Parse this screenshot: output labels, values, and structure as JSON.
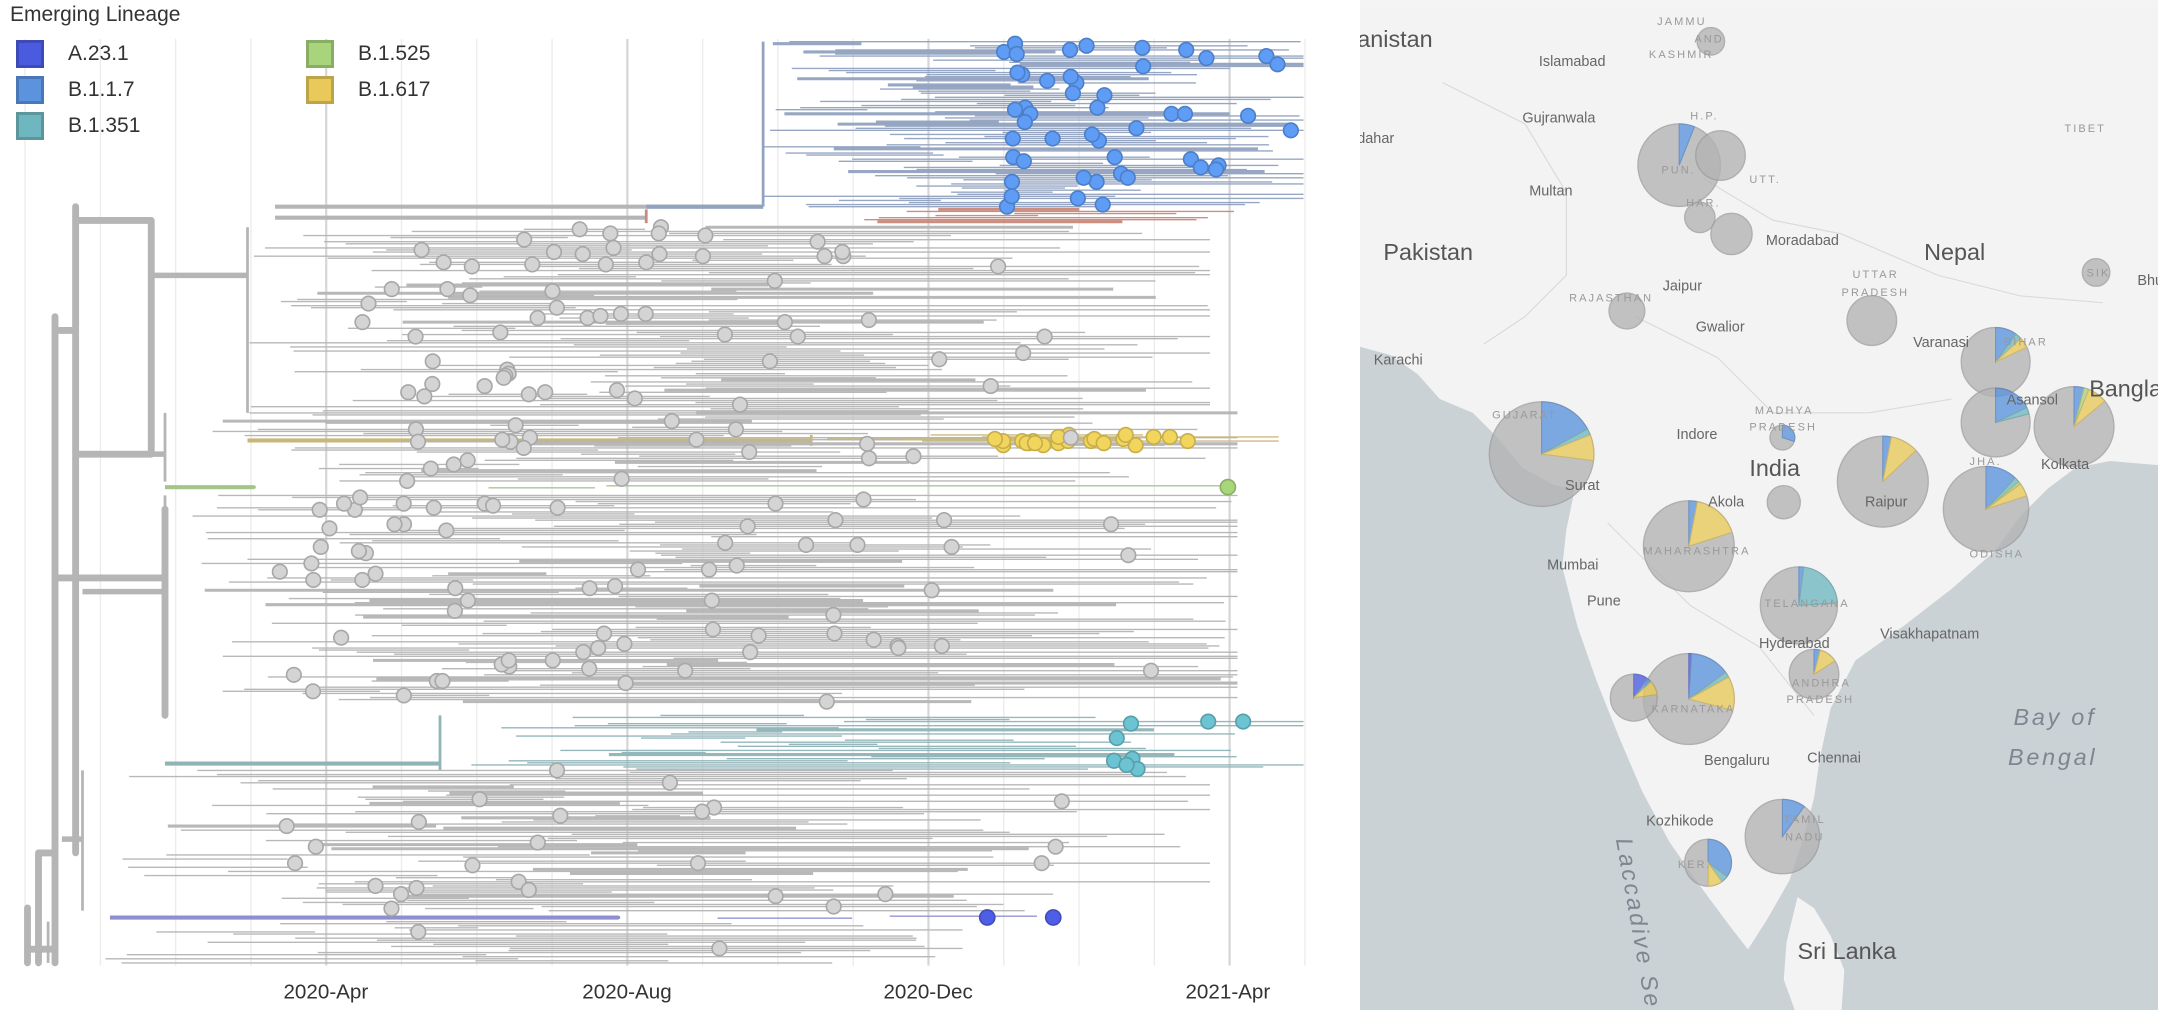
{
  "chart_data": {
    "type": "phylogenetic-tree-and-map",
    "legend": {
      "title": "Emerging Lineage",
      "entries": [
        {
          "name": "A.23.1",
          "color": "#4b5be0"
        },
        {
          "name": "B.1.1.7",
          "color": "#5b93de"
        },
        {
          "name": "B.1.351",
          "color": "#6fb7c0"
        },
        {
          "name": "B.1.525",
          "color": "#a8d47c"
        },
        {
          "name": "B.1.617",
          "color": "#e8c95a"
        }
      ],
      "other_color": "#b3b3b3"
    },
    "tree": {
      "x_axis": {
        "ticks": [
          "2020-Apr",
          "2020-Aug",
          "2020-Dec",
          "2021-Apr"
        ],
        "range_months_since_2020_01": [
          -1,
          16
        ],
        "grid": true
      },
      "clades": [
        {
          "lineage": "B.1.1.7",
          "first_month": 9.2,
          "last_month": 15.5,
          "tip_count": 48
        },
        {
          "lineage": "B.1.617",
          "first_month": 11.5,
          "last_month": 15.3,
          "tip_count": 24
        },
        {
          "lineage": "B.1.525",
          "first_month": 2.1,
          "last_month": 15.0,
          "tip_count": 1
        },
        {
          "lineage": "B.1.351",
          "first_month": 4.6,
          "last_month": 15.3,
          "tip_count": 8
        },
        {
          "lineage": "A.23.1",
          "first_month": 6.9,
          "last_month": 14.4,
          "tip_count": 2
        }
      ]
    },
    "map": {
      "labels": {
        "afghanistan": "anistan",
        "islamabad": "Islamabad",
        "jammu": "JAMMU",
        "and": "AND",
        "kashmir": "KASHMIR",
        "gujranwala": "Gujranwala",
        "hp": "H.P.",
        "tibet": "TIBET",
        "kandahar": "dahar",
        "pun": "PUN.",
        "multan": "Multan",
        "utt": "UTT.",
        "har": "HAR.",
        "pakistan": "Pakistan",
        "moradabad": "Moradabad",
        "nepal": "Nepal",
        "bhutan": "Bhu",
        "sik": "SIK",
        "uttar": "UTTAR",
        "pradesh_up": "PRADESH",
        "rajasthan": "RAJASTHAN",
        "jaipur": "Jaipur",
        "gwalior": "Gwalior",
        "karachi": "Karachi",
        "varanasi": "Varanasi",
        "bihar": "BIHAR",
        "bangladesh": "Bangla",
        "asansol": "Asansol",
        "gujarat": "GUJARAT",
        "madhya": "MADHYA",
        "pradesh_mp": "PRADESH",
        "indore": "Indore",
        "jha": "JHA.",
        "india": "India",
        "kolkata": "Kolkata",
        "surat": "Surat",
        "akola": "Akola",
        "raipur": "Raipur",
        "odisha": "ODISHA",
        "mumbai": "Mumbai",
        "maharashtra": "MAHARASHTRA",
        "pune": "Pune",
        "telangana": "TELANGANA",
        "hyderabad": "Hyderabad",
        "visakhapatnam": "Visakhapatnam",
        "andhra": "ANDHRA",
        "pradesh_ap": "PRADESH",
        "karnataka": "KARNATAKA",
        "bay_of": "Bay of",
        "bengal": "Bengal",
        "bengaluru": "Bengaluru",
        "chennai": "Chennai",
        "kozhikode": "Kozhikode",
        "tamil": "TAMIL",
        "nadu": "NADU",
        "ker": "KER.",
        "laccadive": "Laccadive Se",
        "sri_lanka": "Sri Lanka"
      },
      "pies": [
        {
          "region": "Jammu and Kashmir",
          "fractions": [
            0,
            0,
            0,
            0,
            0
          ]
        },
        {
          "region": "Punjab",
          "fractions": [
            0,
            0.06,
            0,
            0,
            0
          ]
        },
        {
          "region": "Himachal Pradesh",
          "fractions": [
            0,
            0,
            0,
            0,
            0
          ]
        },
        {
          "region": "Haryana",
          "fractions": [
            0,
            0,
            0,
            0,
            0
          ]
        },
        {
          "region": "Delhi",
          "fractions": [
            0,
            0,
            0,
            0,
            0
          ]
        },
        {
          "region": "Sikkim",
          "fractions": [
            0,
            0,
            0,
            0,
            0
          ]
        },
        {
          "region": "Rajasthan",
          "fractions": [
            0,
            0,
            0,
            0,
            0
          ]
        },
        {
          "region": "Uttar Pradesh",
          "fractions": [
            0,
            0,
            0,
            0,
            0
          ]
        },
        {
          "region": "Bihar",
          "fractions": [
            0,
            0.1,
            0.03,
            0,
            0.05
          ]
        },
        {
          "region": "Jharkhand",
          "fractions": [
            0,
            0.18,
            0.03,
            0,
            0
          ]
        },
        {
          "region": "West Bengal",
          "fractions": [
            0,
            0.04,
            0,
            0.02,
            0.08
          ]
        },
        {
          "region": "Gujarat",
          "fractions": [
            0,
            0.17,
            0.02,
            0,
            0.08
          ]
        },
        {
          "region": "Madhya Pradesh",
          "fractions": [
            0,
            0.3,
            0,
            0,
            0
          ]
        },
        {
          "region": "Chhattisgarh",
          "fractions": [
            0,
            0.03,
            0,
            0,
            0.1
          ]
        },
        {
          "region": "Odisha",
          "fractions": [
            0,
            0.12,
            0.02,
            0.01,
            0.05
          ]
        },
        {
          "region": "Akola",
          "fractions": [
            0,
            0,
            0,
            0,
            0
          ]
        },
        {
          "region": "Maharashtra",
          "fractions": [
            0,
            0.03,
            0,
            0,
            0.17
          ]
        },
        {
          "region": "Telangana",
          "fractions": [
            0,
            0.02,
            0.22,
            0,
            0
          ]
        },
        {
          "region": "Andhra Pradesh",
          "fractions": [
            0,
            0.04,
            0,
            0,
            0.12
          ]
        },
        {
          "region": "Karnataka",
          "fractions": [
            0.01,
            0.14,
            0.02,
            0,
            0.12
          ]
        },
        {
          "region": "Goa",
          "fractions": [
            0.1,
            0.03,
            0,
            0,
            0.1
          ]
        },
        {
          "region": "Tamil Nadu",
          "fractions": [
            0,
            0.1,
            0,
            0,
            0
          ]
        },
        {
          "region": "Kerala",
          "fractions": [
            0,
            0.35,
            0.05,
            0,
            0.1
          ]
        }
      ]
    }
  }
}
